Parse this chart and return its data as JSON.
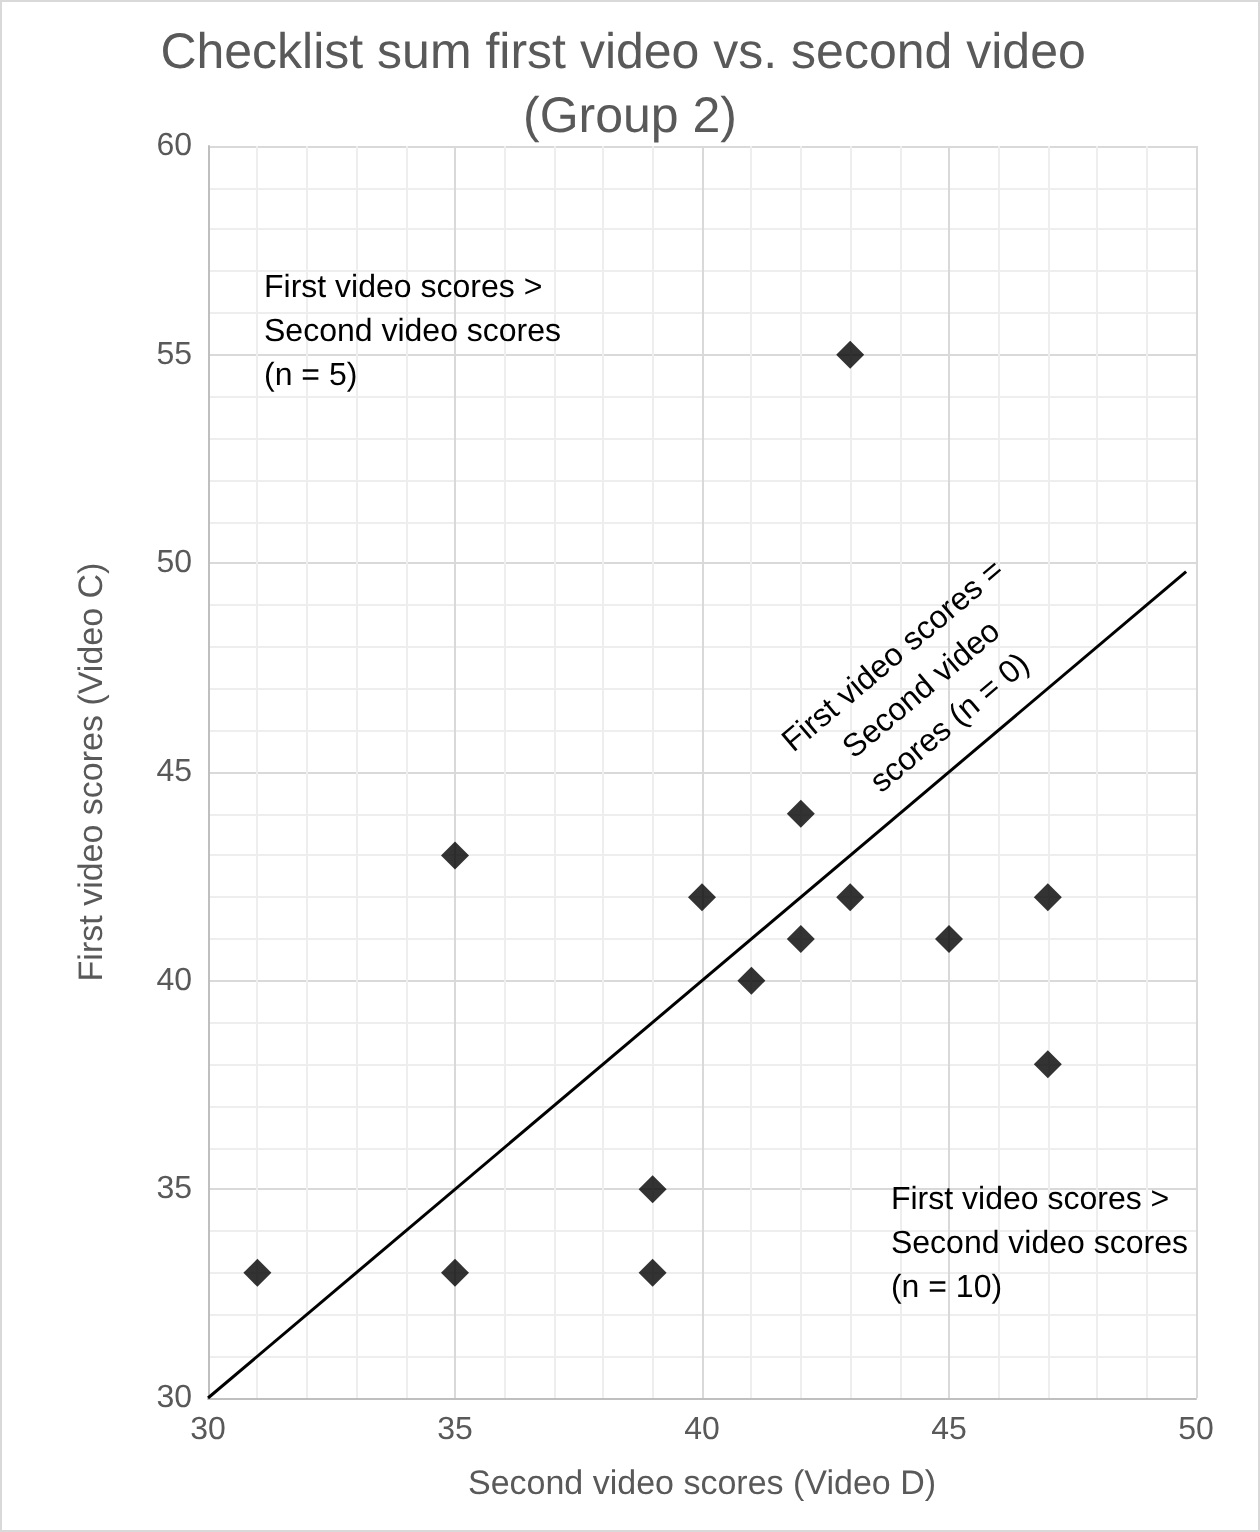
{
  "chart_data": {
    "type": "scatter",
    "title": "Checklist sum first video vs. second video (Group 2)",
    "xlabel": "Second video scores (Video D)",
    "ylabel": "First video scores (Video C)",
    "xlim": [
      30,
      50
    ],
    "xticks": [
      30,
      35,
      40,
      45,
      50
    ],
    "ylim": [
      30,
      60
    ],
    "yticks": [
      30,
      35,
      40,
      45,
      50,
      55,
      60
    ],
    "grid": true,
    "marker": "diamond",
    "series": [
      {
        "color": "#000000",
        "x": [
          31,
          35,
          35,
          39,
          39,
          40,
          41,
          42,
          42,
          43,
          43,
          45,
          47,
          47
        ],
        "values": [
          33,
          43,
          33,
          35,
          33,
          42,
          40,
          44,
          41,
          55,
          42,
          41,
          42,
          38
        ]
      },
      {
        "type": "line",
        "color": "#000000",
        "marker": "none",
        "x": [
          30,
          49.8
        ],
        "values": [
          30,
          49.8
        ]
      }
    ],
    "annotations": [
      "First video scores >\nSecond video scores\n(n = 5)",
      "First video scores >\nSecond video scores\n(n = 10)",
      {
        "text": "First video scores =\nSecond video\nscores (n = 0)",
        "x": 45.5,
        "y": 45.5
      }
    ]
  }
}
